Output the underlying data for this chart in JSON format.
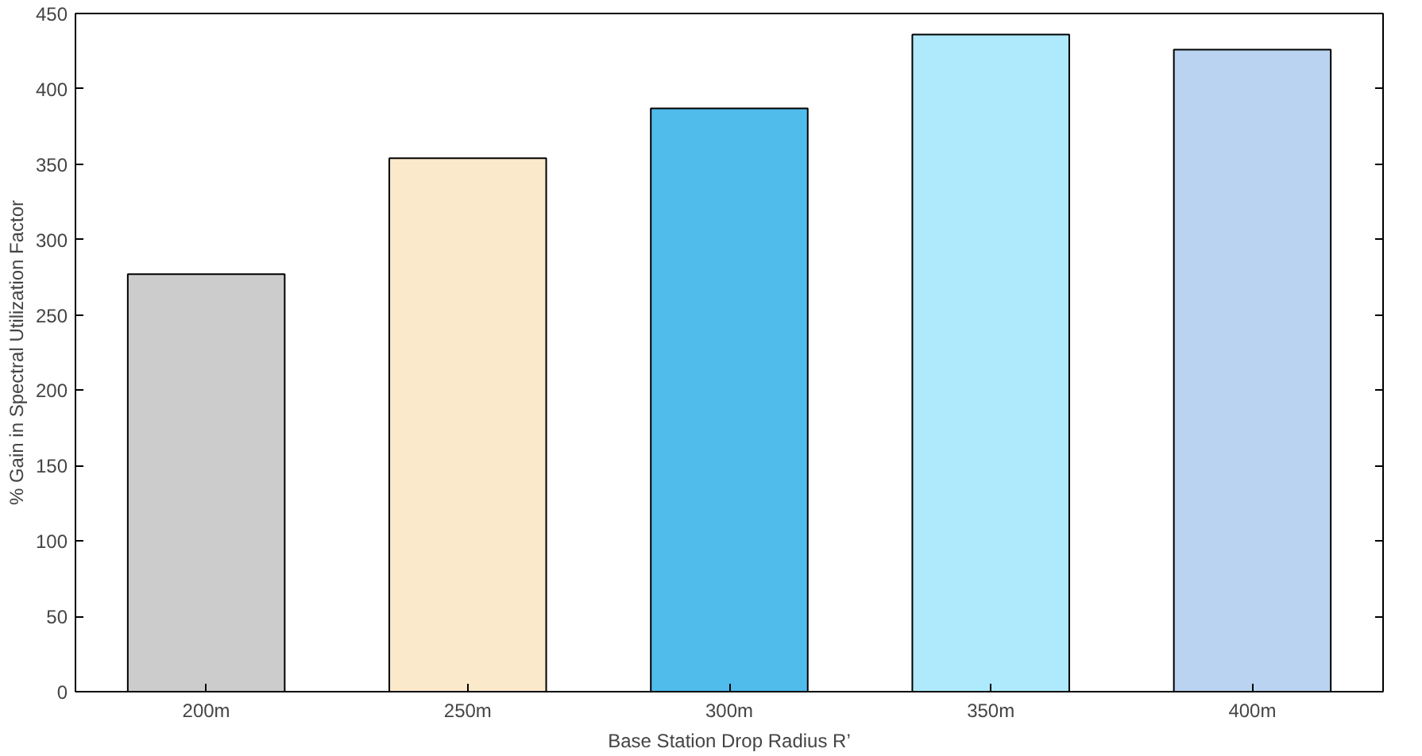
{
  "chart_data": {
    "type": "bar",
    "xlabel": "Base Station Drop Radius R’",
    "ylabel": "% Gain in Spectral Utilization Factor",
    "categories": [
      "200m",
      "250m",
      "300m",
      "350m",
      "400m"
    ],
    "values": [
      277,
      354,
      387,
      436,
      426
    ],
    "colors": [
      "#cccccc",
      "#fbe9cb",
      "#4fbcec",
      "#aeeafb",
      "#b9d3f1"
    ],
    "ylim": [
      0,
      450
    ],
    "yticks": [
      0,
      50,
      100,
      150,
      200,
      250,
      300,
      350,
      400,
      450
    ],
    "grid": false
  }
}
